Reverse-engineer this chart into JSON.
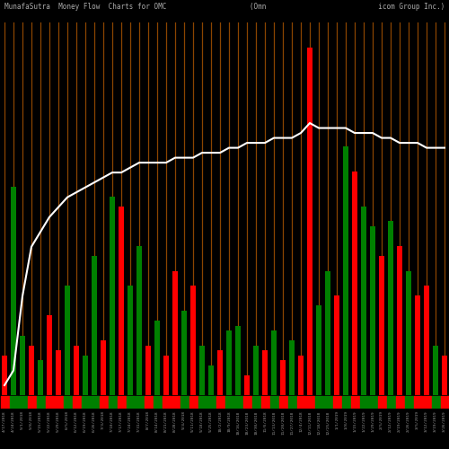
{
  "title": "MunafaSutra  Money Flow  Charts for OMC                    (Omn                           icom Group Inc.) MunafaSutra.com",
  "bg_color": "#000000",
  "grid_color": "#8B4500",
  "bar_colors": [
    "red",
    "green",
    "green",
    "red",
    "green",
    "red",
    "red",
    "green",
    "red",
    "green",
    "green",
    "red",
    "green",
    "red",
    "green",
    "green",
    "red",
    "green",
    "red",
    "red",
    "green",
    "red",
    "green",
    "green",
    "red",
    "green",
    "green",
    "red",
    "green",
    "red",
    "green",
    "red",
    "green",
    "red",
    "red",
    "green",
    "green",
    "red",
    "green",
    "red",
    "green",
    "green",
    "red",
    "green",
    "red",
    "green",
    "red",
    "red",
    "green",
    "red"
  ],
  "bar_heights": [
    8,
    42,
    12,
    10,
    7,
    16,
    9,
    22,
    10,
    8,
    28,
    11,
    40,
    38,
    22,
    30,
    10,
    15,
    8,
    25,
    17,
    22,
    10,
    6,
    9,
    13,
    14,
    4,
    10,
    9,
    13,
    7,
    11,
    8,
    70,
    18,
    25,
    20,
    50,
    45,
    38,
    34,
    28,
    35,
    30,
    25,
    20,
    22,
    10,
    8
  ],
  "line_values": [
    2,
    5,
    20,
    30,
    33,
    36,
    38,
    40,
    41,
    42,
    43,
    44,
    45,
    45,
    46,
    47,
    47,
    47,
    47,
    48,
    48,
    48,
    49,
    49,
    49,
    50,
    50,
    51,
    51,
    51,
    52,
    52,
    52,
    53,
    55,
    54,
    54,
    54,
    54,
    53,
    53,
    53,
    52,
    52,
    51,
    51,
    51,
    50,
    50,
    50
  ],
  "line_color": "#ffffff",
  "line_width": 1.5,
  "title_color": "#aaaaaa",
  "title_fontsize": 5.5,
  "n_bars": 50,
  "bar_max": 75,
  "tick_labels": [
    "4/17/2018",
    "4/24/2018",
    "5/1/2018",
    "5/8/2018",
    "5/15/2018",
    "5/22/2018",
    "5/29/2018",
    "6/5/2018",
    "6/12/2018",
    "6/19/2018",
    "6/26/2018",
    "7/3/2018",
    "7/10/2018",
    "7/17/2018",
    "7/24/2018",
    "7/31/2018",
    "8/7/2018",
    "8/14/2018",
    "8/21/2018",
    "8/28/2018",
    "9/4/2018",
    "9/11/2018",
    "9/18/2018",
    "9/25/2018",
    "10/2/2018",
    "10/9/2018",
    "10/16/2018",
    "10/23/2018",
    "10/30/2018",
    "11/6/2018",
    "11/13/2018",
    "11/20/2018",
    "11/27/2018",
    "12/4/2018",
    "12/11/2018",
    "12/18/2018",
    "12/25/2018",
    "1/1/2019",
    "1/8/2019",
    "1/15/2019",
    "1/22/2019",
    "1/29/2019",
    "2/5/2019",
    "2/12/2019",
    "2/19/2019",
    "2/26/2019",
    "3/5/2019",
    "3/12/2019",
    "3/19/2019",
    "3/26/2019"
  ]
}
